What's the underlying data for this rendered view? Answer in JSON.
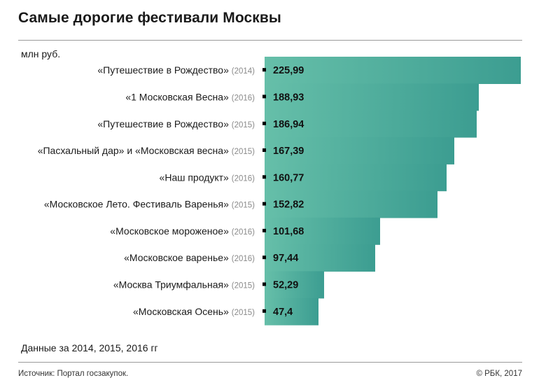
{
  "title": "Самые дорогие фестивали Москвы",
  "unit_label": "млн руб.",
  "note": "Данные за 2014, 2015, 2016 гг",
  "source": "Источник: Портал госзакупок.",
  "copyright": "© РБК, 2017",
  "colors": {
    "bar_light": "#66BFA9",
    "bar_dark": "#3C9D91",
    "marker": "#000000"
  },
  "chart_data": {
    "type": "bar",
    "orientation": "horizontal",
    "ylabel": "млн руб.",
    "categories": [
      {
        "label": "«Путешествие в Рождество»",
        "year": "(2014)"
      },
      {
        "label": "«1 Московская Весна»",
        "year": "(2016)"
      },
      {
        "label": "«Путешествие в Рождество»",
        "year": "(2015)"
      },
      {
        "label": "«Пасхальный дар» и «Московская весна»",
        "year": "(2015)"
      },
      {
        "label": "«Наш продукт»",
        "year": "(2016)"
      },
      {
        "label": "«Московское Лето. Фестиваль Варенья»",
        "year": "(2015)"
      },
      {
        "label": "«Московское мороженое»",
        "year": "(2016)"
      },
      {
        "label": "«Московское варенье»",
        "year": "(2016)"
      },
      {
        "label": "«Москва Триумфальная»",
        "year": "(2015)"
      },
      {
        "label": "«Московская Осень»",
        "year": "(2015)"
      }
    ],
    "values": [
      225.99,
      188.93,
      186.94,
      167.39,
      160.77,
      152.82,
      101.68,
      97.44,
      52.29,
      47.4
    ],
    "value_labels": [
      "225,99",
      "188,93",
      "186,94",
      "167,39",
      "160,77",
      "152,82",
      "101,68",
      "97,44",
      "52,29",
      "47,4"
    ],
    "xlim": [
      0,
      226
    ]
  }
}
